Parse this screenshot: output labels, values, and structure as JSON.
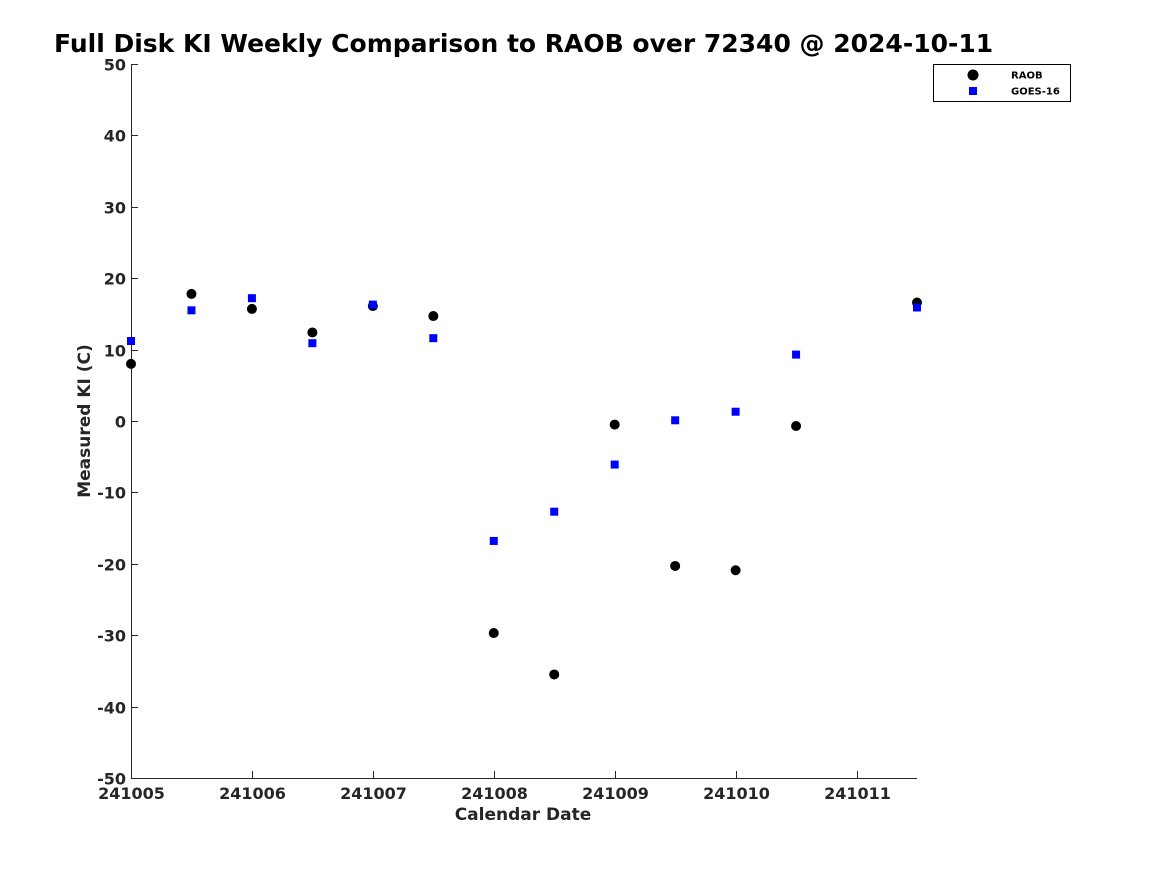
{
  "chart_data": {
    "type": "scatter",
    "title": "Full Disk KI Weekly Comparison to RAOB over 72340 @ 2024-10-11",
    "xlabel": "Calendar Date",
    "ylabel": "Measured KI (C)",
    "xlim": [
      241005,
      241011.5
    ],
    "ylim": [
      -50,
      50
    ],
    "xticks": [
      241005,
      241006,
      241007,
      241008,
      241009,
      241010,
      241011
    ],
    "xtick_labels": [
      "241005",
      "241006",
      "241007",
      "241008",
      "241009",
      "241010",
      "241011"
    ],
    "yticks": [
      50,
      40,
      30,
      20,
      10,
      0,
      -10,
      -20,
      -30,
      -40,
      -50
    ],
    "ytick_labels": [
      "50",
      "40",
      "30",
      "20",
      "10",
      "0",
      "-10",
      "-20",
      "-30",
      "-40",
      "-50"
    ],
    "grid": false,
    "legend_position": "top-right",
    "series": [
      {
        "name": "RAOB",
        "marker": "circle",
        "color": "#000000",
        "points": [
          [
            241005,
            8.0
          ],
          [
            241005.5,
            17.8
          ],
          [
            241006,
            15.7
          ],
          [
            241006.5,
            12.4
          ],
          [
            241007,
            16.1
          ],
          [
            241007.5,
            14.7
          ],
          [
            241008,
            -29.7
          ],
          [
            241008.5,
            -35.5
          ],
          [
            241009,
            -0.5
          ],
          [
            241009.5,
            -20.3
          ],
          [
            241010,
            -20.9
          ],
          [
            241010.5,
            -0.7
          ],
          [
            241011.5,
            16.6
          ]
        ]
      },
      {
        "name": "GOES-16",
        "marker": "square",
        "color": "#0000ff",
        "points": [
          [
            241005,
            11.2
          ],
          [
            241005.5,
            15.5
          ],
          [
            241006,
            17.2
          ],
          [
            241006.5,
            10.9
          ],
          [
            241007,
            16.3
          ],
          [
            241007.5,
            11.6
          ],
          [
            241008,
            -16.8
          ],
          [
            241008.5,
            -12.7
          ],
          [
            241009,
            -6.1
          ],
          [
            241009.5,
            0.1
          ],
          [
            241010,
            1.3
          ],
          [
            241010.5,
            9.3
          ],
          [
            241011.5,
            15.9
          ]
        ]
      }
    ]
  }
}
